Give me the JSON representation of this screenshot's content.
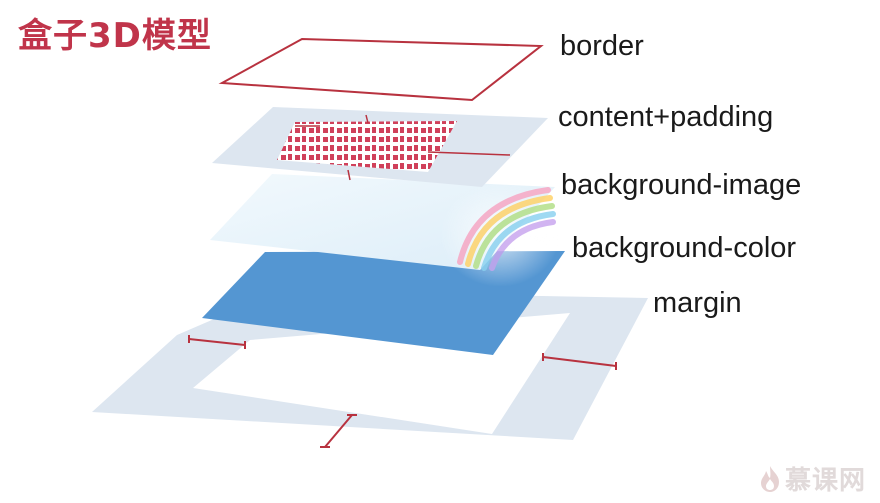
{
  "title": "盒子3D模型",
  "layers": {
    "border": "border",
    "content_padding": "content+padding",
    "background_image": "background-image",
    "background_color": "background-color",
    "margin": "margin"
  },
  "logo": {
    "text": "慕课网",
    "icon": "flame-icon"
  },
  "colors": {
    "title": "#c0344a",
    "border_line": "#b8323f",
    "margin_fill": "#dde6f0",
    "padding_fill": "#dde6f0",
    "bg_image_fill": "#e6f3fb",
    "bg_color_fill": "#5496d2",
    "content_text": "#d0405a"
  }
}
